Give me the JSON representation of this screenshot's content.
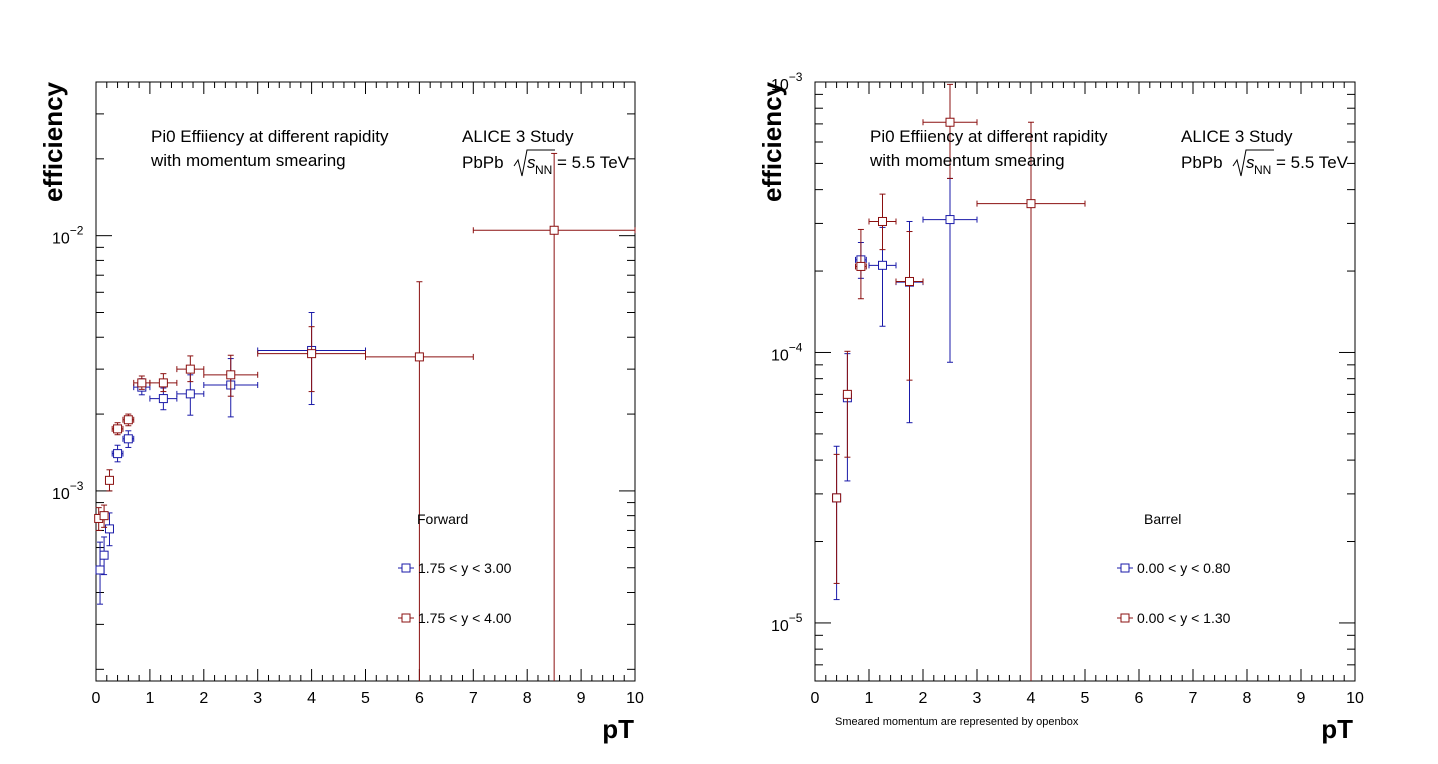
{
  "chart_data": [
    {
      "type": "scatter",
      "panel": "left",
      "xlabel": "pT",
      "ylabel": "efficiency",
      "xlim": [
        0,
        10
      ],
      "ylim": [
        0.00018,
        0.04
      ],
      "yscale": "log",
      "x_ticks": [
        "0",
        "1",
        "2",
        "3",
        "4",
        "5",
        "6",
        "7",
        "8",
        "9",
        "10"
      ],
      "y_ticks": [
        {
          "value": 0.001,
          "label": "10",
          "exp": "−3"
        },
        {
          "value": 0.01,
          "label": "10",
          "exp": "−2"
        }
      ],
      "annotations": {
        "line1": "Pi0 Effiiency at different rapidity",
        "line2": "with momentum smearing",
        "study": "ALICE 3 Study",
        "collision_prefix": "PbPb",
        "collision_s": "s",
        "collision_sub": "NN",
        "collision_suffix": "= 5.5 TeV"
      },
      "legend": {
        "title": "Forward"
      },
      "series": [
        {
          "name": "1.75 < y < 3.00",
          "color": "#1a1aa8",
          "points": [
            {
              "x": 0.075,
              "xerr": 0.025,
              "y": 0.00049,
              "ylo": 0.00036,
              "yhi": 0.00063
            },
            {
              "x": 0.15,
              "xerr": 0.05,
              "y": 0.00056,
              "ylo": 0.00047,
              "yhi": 0.00066
            },
            {
              "x": 0.25,
              "xerr": 0.05,
              "y": 0.00071,
              "ylo": 0.00061,
              "yhi": 0.00082
            },
            {
              "x": 0.4,
              "xerr": 0.1,
              "y": 0.0014,
              "ylo": 0.0013,
              "yhi": 0.00151
            },
            {
              "x": 0.6,
              "xerr": 0.1,
              "y": 0.0016,
              "ylo": 0.00148,
              "yhi": 0.00172
            },
            {
              "x": 0.85,
              "xerr": 0.15,
              "y": 0.00255,
              "ylo": 0.00238,
              "yhi": 0.00275
            },
            {
              "x": 1.25,
              "xerr": 0.25,
              "y": 0.0023,
              "ylo": 0.00208,
              "yhi": 0.00253
            },
            {
              "x": 1.75,
              "xerr": 0.25,
              "y": 0.0024,
              "ylo": 0.00198,
              "yhi": 0.00285
            },
            {
              "x": 2.5,
              "xerr": 0.5,
              "y": 0.0026,
              "ylo": 0.00195,
              "yhi": 0.0033
            },
            {
              "x": 4.0,
              "xerr": 1.0,
              "y": 0.00355,
              "ylo": 0.00218,
              "yhi": 0.005
            }
          ]
        },
        {
          "name": "1.75 < y < 4.00",
          "color": "#8b1010",
          "points": [
            {
              "x": 0.05,
              "xerr": 0.05,
              "y": 0.00078,
              "ylo": 0.0007,
              "yhi": 0.00086
            },
            {
              "x": 0.15,
              "xerr": 0.05,
              "y": 0.0008,
              "ylo": 0.00072,
              "yhi": 0.00088
            },
            {
              "x": 0.25,
              "xerr": 0.05,
              "y": 0.0011,
              "ylo": 0.001,
              "yhi": 0.00121
            },
            {
              "x": 0.4,
              "xerr": 0.1,
              "y": 0.00175,
              "ylo": 0.00166,
              "yhi": 0.00185
            },
            {
              "x": 0.6,
              "xerr": 0.1,
              "y": 0.0019,
              "ylo": 0.0018,
              "yhi": 0.002
            },
            {
              "x": 0.85,
              "xerr": 0.15,
              "y": 0.00265,
              "ylo": 0.0025,
              "yhi": 0.00282
            },
            {
              "x": 1.25,
              "xerr": 0.25,
              "y": 0.00265,
              "ylo": 0.00245,
              "yhi": 0.00288
            },
            {
              "x": 1.75,
              "xerr": 0.25,
              "y": 0.003,
              "ylo": 0.00268,
              "yhi": 0.00338
            },
            {
              "x": 2.5,
              "xerr": 0.5,
              "y": 0.00285,
              "ylo": 0.00235,
              "yhi": 0.0034
            },
            {
              "x": 4.0,
              "xerr": 1.0,
              "y": 0.00345,
              "ylo": 0.00245,
              "yhi": 0.0044
            },
            {
              "x": 6.0,
              "xerr": 1.0,
              "y": 0.00335,
              "ylo": 0.00018,
              "yhi": 0.0066
            },
            {
              "x": 8.5,
              "xerr": 1.5,
              "y": 0.0105,
              "ylo": 0.00018,
              "yhi": 0.021
            }
          ]
        }
      ]
    },
    {
      "type": "scatter",
      "panel": "right",
      "xlabel": "pT",
      "ylabel": "efficiency",
      "xlim": [
        0,
        10
      ],
      "ylim": [
        6.1e-06,
        0.001
      ],
      "yscale": "log",
      "x_ticks": [
        "0",
        "1",
        "2",
        "3",
        "4",
        "5",
        "6",
        "7",
        "8",
        "9",
        "10"
      ],
      "y_ticks": [
        {
          "value": 1e-05,
          "label": "10",
          "exp": "−5"
        },
        {
          "value": 0.0001,
          "label": "10",
          "exp": "−4"
        },
        {
          "value": 0.001,
          "label": "10",
          "exp": "−3"
        }
      ],
      "annotations": {
        "line1": "Pi0 Effiiency at different rapidity",
        "line2": "with momentum smearing",
        "study": "ALICE 3 Study",
        "collision_prefix": "PbPb",
        "collision_s": "s",
        "collision_sub": "NN",
        "collision_suffix": "= 5.5 TeV",
        "footnote": "Smeared momentum are represented by openbox"
      },
      "legend": {
        "title": "Barrel"
      },
      "series": [
        {
          "name": "0.00 < y < 0.80",
          "color": "#1a1aa8",
          "points": [
            {
              "x": 0.4,
              "xerr": 0.05,
              "y": 2.9e-05,
              "ylo": 1.22e-05,
              "yhi": 4.5e-05
            },
            {
              "x": 0.6,
              "xerr": 0.05,
              "y": 6.8e-05,
              "ylo": 3.35e-05,
              "yhi": 9.9e-05
            },
            {
              "x": 0.85,
              "xerr": 0.1,
              "y": 0.00022,
              "ylo": 0.000188,
              "yhi": 0.000255
            },
            {
              "x": 1.25,
              "xerr": 0.25,
              "y": 0.00021,
              "ylo": 0.000125,
              "yhi": 0.00029
            },
            {
              "x": 1.75,
              "xerr": 0.25,
              "y": 0.000182,
              "ylo": 5.5e-05,
              "yhi": 0.000305
            },
            {
              "x": 2.5,
              "xerr": 0.5,
              "y": 0.00031,
              "ylo": 9.2e-05,
              "yhi": 0.00044
            }
          ]
        },
        {
          "name": "0.00 < y < 1.30",
          "color": "#8b1010",
          "points": [
            {
              "x": 0.4,
              "xerr": 0.05,
              "y": 2.9e-05,
              "ylo": 1.4e-05,
              "yhi": 4.2e-05
            },
            {
              "x": 0.6,
              "xerr": 0.05,
              "y": 7e-05,
              "ylo": 4.1e-05,
              "yhi": 0.000101
            },
            {
              "x": 0.85,
              "xerr": 0.1,
              "y": 0.000208,
              "ylo": 0.000158,
              "yhi": 0.000285
            },
            {
              "x": 1.25,
              "xerr": 0.25,
              "y": 0.000305,
              "ylo": 0.00024,
              "yhi": 0.000385
            },
            {
              "x": 1.75,
              "xerr": 0.25,
              "y": 0.000183,
              "ylo": 7.9e-05,
              "yhi": 0.00028
            },
            {
              "x": 2.5,
              "xerr": 0.5,
              "y": 0.00071,
              "ylo": 0.00044,
              "yhi": 0.00098
            },
            {
              "x": 4.0,
              "xerr": 1.0,
              "y": 0.000355,
              "ylo": 6.1e-06,
              "yhi": 0.00071
            }
          ]
        }
      ]
    }
  ]
}
